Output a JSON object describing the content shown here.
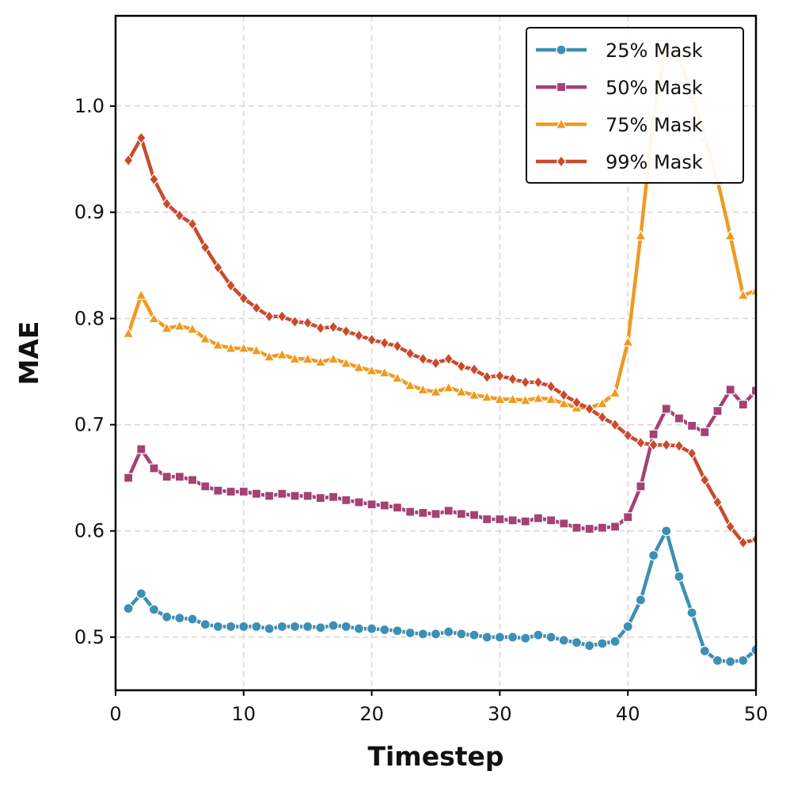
{
  "chart_data": {
    "type": "line",
    "title": "",
    "xlabel": "Timestep",
    "ylabel": "MAE",
    "xlim": [
      0,
      50
    ],
    "ylim": [
      0.45,
      1.085
    ],
    "xticks": [
      0,
      10,
      20,
      30,
      40,
      50
    ],
    "yticks": [
      0.5,
      0.6,
      0.7,
      0.8,
      0.9,
      1.0
    ],
    "xtick_labels": [
      "0",
      "10",
      "20",
      "30",
      "40",
      "50"
    ],
    "ytick_labels": [
      "0.5",
      "0.6",
      "0.7",
      "0.8",
      "0.9",
      "1.0"
    ],
    "grid": true,
    "legend_position": "top-right",
    "x": [
      1,
      2,
      3,
      4,
      5,
      6,
      7,
      8,
      9,
      10,
      11,
      12,
      13,
      14,
      15,
      16,
      17,
      18,
      19,
      20,
      21,
      22,
      23,
      24,
      25,
      26,
      27,
      28,
      29,
      30,
      31,
      32,
      33,
      34,
      35,
      36,
      37,
      38,
      39,
      40,
      41,
      42,
      43,
      44,
      45,
      46,
      47,
      48,
      49,
      50
    ],
    "series": [
      {
        "name": "25% Mask",
        "color": "#3d8fb4",
        "marker": "circle",
        "values": [
          0.527,
          0.541,
          0.526,
          0.519,
          0.518,
          0.517,
          0.512,
          0.51,
          0.51,
          0.51,
          0.51,
          0.508,
          0.51,
          0.51,
          0.51,
          0.509,
          0.511,
          0.51,
          0.508,
          0.508,
          0.507,
          0.506,
          0.504,
          0.503,
          0.503,
          0.505,
          0.503,
          0.502,
          0.5,
          0.5,
          0.5,
          0.499,
          0.502,
          0.5,
          0.497,
          0.495,
          0.492,
          0.494,
          0.496,
          0.51,
          0.535,
          0.577,
          0.6,
          0.557,
          0.523,
          0.487,
          0.478,
          0.477,
          0.478,
          0.488
        ]
      },
      {
        "name": "50% Mask",
        "color": "#a34273",
        "marker": "square",
        "values": [
          0.65,
          0.677,
          0.659,
          0.651,
          0.651,
          0.648,
          0.642,
          0.638,
          0.637,
          0.637,
          0.635,
          0.633,
          0.635,
          0.633,
          0.633,
          0.631,
          0.632,
          0.629,
          0.627,
          0.625,
          0.624,
          0.622,
          0.618,
          0.617,
          0.616,
          0.619,
          0.616,
          0.615,
          0.611,
          0.611,
          0.61,
          0.609,
          0.612,
          0.61,
          0.607,
          0.603,
          0.602,
          0.603,
          0.604,
          0.613,
          0.642,
          0.691,
          0.715,
          0.706,
          0.699,
          0.693,
          0.713,
          0.733,
          0.719,
          0.732
        ]
      },
      {
        "name": "75% Mask",
        "color": "#ee9a21",
        "marker": "triangle",
        "values": [
          0.786,
          0.822,
          0.8,
          0.791,
          0.793,
          0.79,
          0.781,
          0.775,
          0.772,
          0.772,
          0.77,
          0.764,
          0.766,
          0.762,
          0.762,
          0.759,
          0.762,
          0.758,
          0.754,
          0.751,
          0.749,
          0.744,
          0.737,
          0.733,
          0.731,
          0.735,
          0.731,
          0.728,
          0.726,
          0.724,
          0.724,
          0.723,
          0.725,
          0.724,
          0.72,
          0.716,
          0.716,
          0.72,
          0.73,
          0.778,
          0.878,
          0.99,
          1.06,
          1.045,
          1.01,
          0.97,
          0.93,
          0.878,
          0.822,
          0.826
        ]
      },
      {
        "name": "99% Mask",
        "color": "#c94a2c",
        "marker": "diamond",
        "values": [
          0.949,
          0.97,
          0.931,
          0.908,
          0.897,
          0.889,
          0.867,
          0.848,
          0.831,
          0.819,
          0.81,
          0.802,
          0.802,
          0.797,
          0.796,
          0.791,
          0.792,
          0.788,
          0.784,
          0.78,
          0.777,
          0.774,
          0.767,
          0.762,
          0.758,
          0.762,
          0.755,
          0.752,
          0.745,
          0.746,
          0.743,
          0.74,
          0.74,
          0.736,
          0.728,
          0.721,
          0.715,
          0.707,
          0.7,
          0.69,
          0.683,
          0.681,
          0.681,
          0.68,
          0.673,
          0.648,
          0.627,
          0.604,
          0.589,
          0.592
        ]
      }
    ]
  }
}
